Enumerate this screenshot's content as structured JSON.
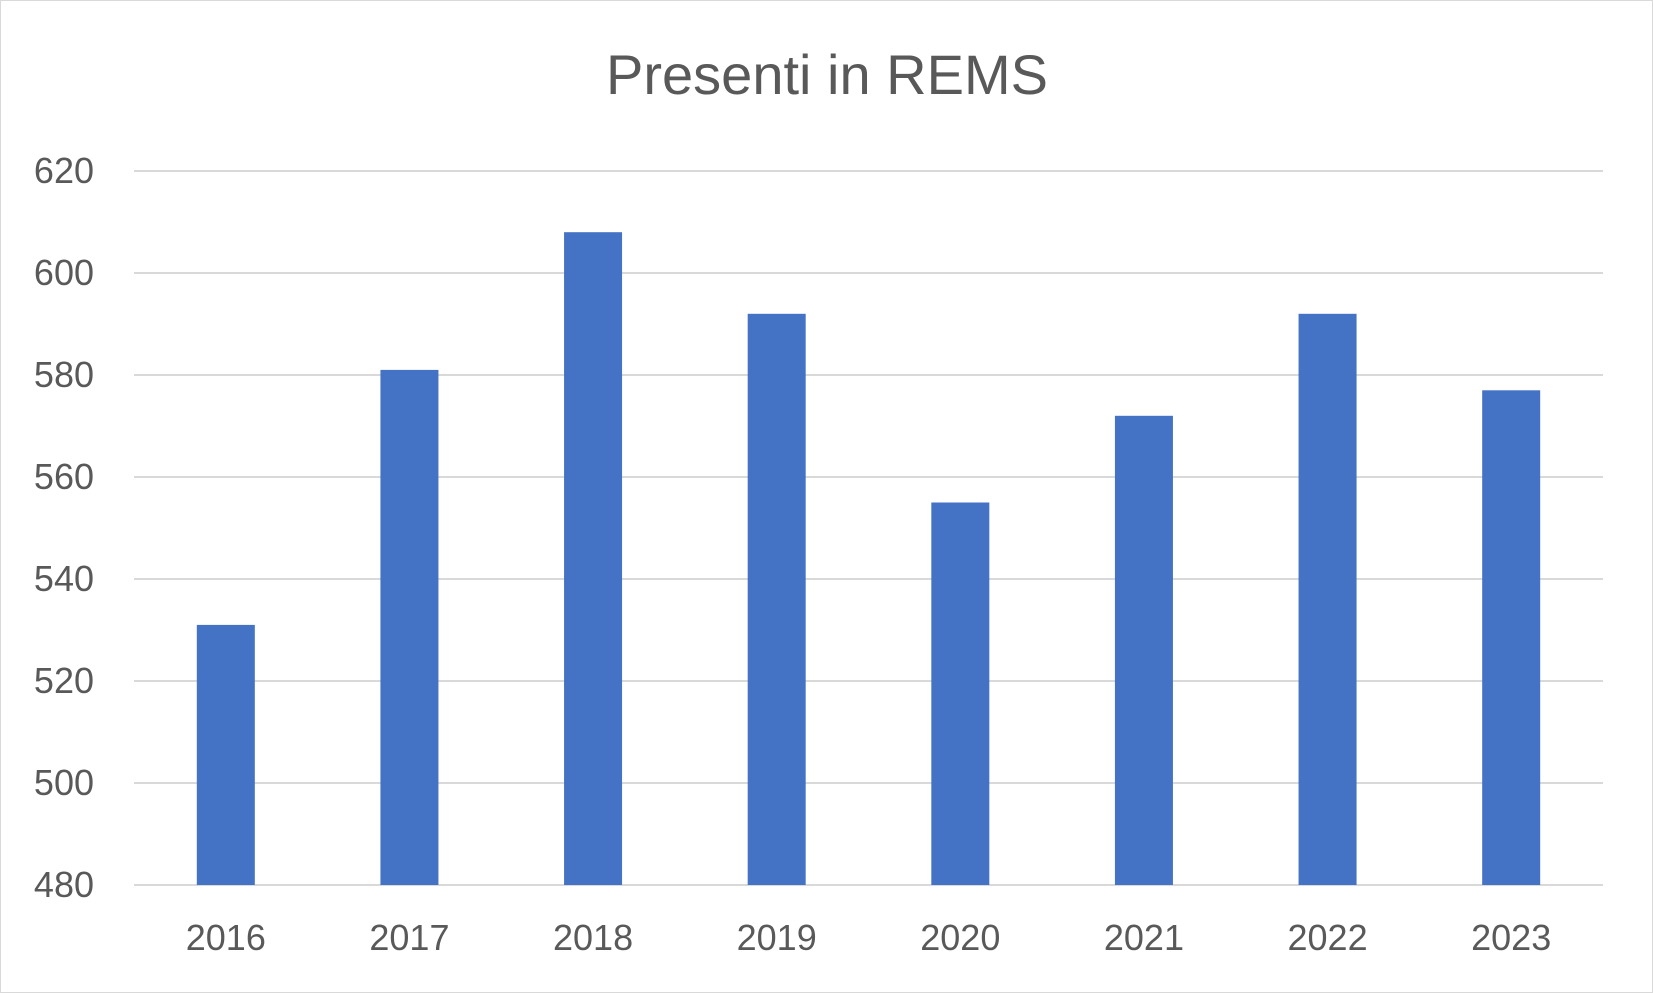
{
  "chart_data": {
    "type": "bar",
    "title": "Presenti in REMS",
    "xlabel": "",
    "ylabel": "",
    "categories": [
      "2016",
      "2017",
      "2018",
      "2019",
      "2020",
      "2021",
      "2022",
      "2023"
    ],
    "values": [
      531,
      581,
      608,
      592,
      555,
      572,
      592,
      577
    ],
    "ylim": [
      480,
      620
    ],
    "yticks": [
      480,
      500,
      520,
      540,
      560,
      580,
      600,
      620
    ],
    "grid": true,
    "legend": "none",
    "bar_color": "#4472C4",
    "grid_color": "#D9D9D9",
    "text_color": "#595959"
  }
}
